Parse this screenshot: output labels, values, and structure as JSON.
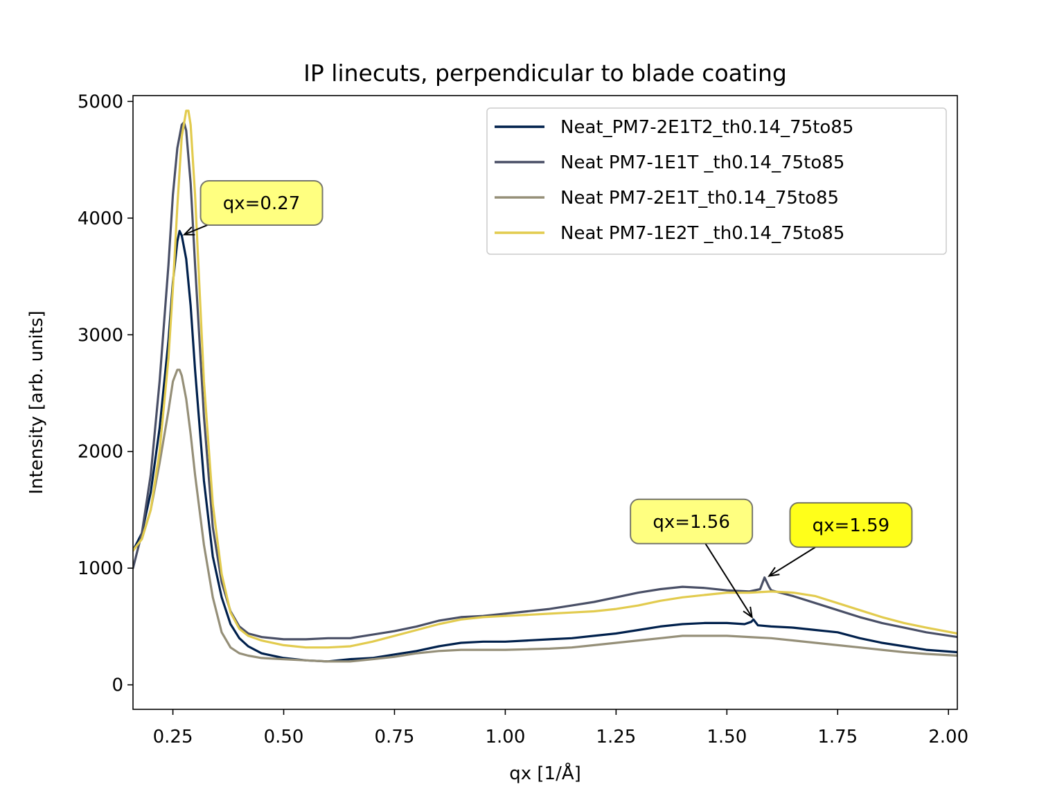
{
  "chart_data": {
    "type": "line",
    "title": "IP linecuts, perpendicular to blade coating",
    "xlabel": "qx [1/Å]",
    "ylabel": "Intensity [arb. units]",
    "xlim": [
      0.16,
      2.02
    ],
    "ylim": [
      -210,
      5050
    ],
    "xticks": [
      0.25,
      0.5,
      0.75,
      1.0,
      1.25,
      1.5,
      1.75,
      2.0
    ],
    "xtick_labels": [
      "0.25",
      "0.50",
      "0.75",
      "1.00",
      "1.25",
      "1.50",
      "1.75",
      "2.00"
    ],
    "yticks": [
      0,
      1000,
      2000,
      3000,
      4000,
      5000
    ],
    "ytick_labels": [
      "0",
      "1000",
      "2000",
      "3000",
      "4000",
      "5000"
    ],
    "grid": false,
    "legend_position": "top-right",
    "series": [
      {
        "name": "Neat_PM7-2E1T2_th0.14_75to85",
        "color": "#00204c",
        "x": [
          0.16,
          0.18,
          0.2,
          0.22,
          0.24,
          0.25,
          0.26,
          0.265,
          0.27,
          0.28,
          0.29,
          0.3,
          0.32,
          0.34,
          0.36,
          0.38,
          0.4,
          0.42,
          0.45,
          0.5,
          0.55,
          0.6,
          0.65,
          0.7,
          0.75,
          0.8,
          0.85,
          0.9,
          0.95,
          1.0,
          1.05,
          1.1,
          1.15,
          1.2,
          1.25,
          1.3,
          1.35,
          1.4,
          1.45,
          1.5,
          1.54,
          1.555,
          1.56,
          1.57,
          1.6,
          1.65,
          1.7,
          1.75,
          1.8,
          1.85,
          1.9,
          1.95,
          2.02
        ],
        "y": [
          1150,
          1300,
          1650,
          2200,
          2950,
          3450,
          3800,
          3890,
          3850,
          3650,
          3250,
          2700,
          1750,
          1100,
          750,
          520,
          400,
          330,
          270,
          230,
          210,
          200,
          220,
          230,
          260,
          290,
          330,
          360,
          370,
          370,
          380,
          390,
          400,
          420,
          440,
          470,
          500,
          520,
          530,
          530,
          520,
          540,
          560,
          510,
          500,
          490,
          470,
          450,
          400,
          360,
          330,
          300,
          280
        ]
      },
      {
        "name": "Neat PM7-1E1T _th0.14_75to85",
        "color": "#494f66",
        "x": [
          0.16,
          0.18,
          0.2,
          0.22,
          0.24,
          0.25,
          0.26,
          0.27,
          0.275,
          0.28,
          0.29,
          0.3,
          0.32,
          0.34,
          0.36,
          0.38,
          0.4,
          0.42,
          0.45,
          0.5,
          0.55,
          0.6,
          0.65,
          0.7,
          0.75,
          0.8,
          0.85,
          0.9,
          0.95,
          1.0,
          1.05,
          1.1,
          1.15,
          1.2,
          1.25,
          1.3,
          1.35,
          1.4,
          1.45,
          1.5,
          1.55,
          1.575,
          1.585,
          1.595,
          1.6,
          1.65,
          1.7,
          1.75,
          1.8,
          1.85,
          1.9,
          1.95,
          2.02
        ],
        "y": [
          1000,
          1300,
          1800,
          2600,
          3600,
          4200,
          4600,
          4800,
          4820,
          4750,
          4300,
          3600,
          2300,
          1350,
          880,
          630,
          500,
          440,
          410,
          390,
          390,
          400,
          400,
          430,
          460,
          500,
          550,
          580,
          590,
          610,
          630,
          650,
          680,
          710,
          750,
          790,
          820,
          840,
          830,
          810,
          800,
          820,
          920,
          840,
          810,
          760,
          700,
          640,
          580,
          530,
          490,
          450,
          410
        ]
      },
      {
        "name": "Neat PM7-2E1T_th0.14_75to85",
        "color": "#958f78",
        "x": [
          0.16,
          0.18,
          0.2,
          0.22,
          0.24,
          0.25,
          0.26,
          0.265,
          0.27,
          0.28,
          0.29,
          0.3,
          0.32,
          0.34,
          0.36,
          0.38,
          0.4,
          0.42,
          0.45,
          0.5,
          0.55,
          0.6,
          0.65,
          0.7,
          0.75,
          0.8,
          0.85,
          0.9,
          0.95,
          1.0,
          1.05,
          1.1,
          1.15,
          1.2,
          1.25,
          1.3,
          1.35,
          1.4,
          1.45,
          1.5,
          1.55,
          1.6,
          1.65,
          1.7,
          1.75,
          1.8,
          1.85,
          1.9,
          1.95,
          2.02
        ],
        "y": [
          1150,
          1250,
          1500,
          1900,
          2350,
          2600,
          2700,
          2700,
          2650,
          2450,
          2150,
          1800,
          1200,
          750,
          450,
          320,
          270,
          250,
          230,
          220,
          210,
          200,
          200,
          220,
          240,
          270,
          290,
          300,
          300,
          300,
          305,
          310,
          320,
          340,
          360,
          380,
          400,
          420,
          420,
          420,
          410,
          400,
          380,
          360,
          340,
          320,
          300,
          280,
          265,
          250
        ]
      },
      {
        "name": "Neat PM7-1E2T _th0.14_75to85",
        "color": "#e2cb4e",
        "x": [
          0.16,
          0.18,
          0.2,
          0.22,
          0.24,
          0.25,
          0.26,
          0.27,
          0.28,
          0.285,
          0.29,
          0.3,
          0.31,
          0.32,
          0.34,
          0.36,
          0.38,
          0.4,
          0.42,
          0.45,
          0.5,
          0.55,
          0.6,
          0.65,
          0.7,
          0.75,
          0.8,
          0.85,
          0.9,
          0.95,
          1.0,
          1.05,
          1.1,
          1.15,
          1.2,
          1.25,
          1.3,
          1.35,
          1.4,
          1.45,
          1.5,
          1.55,
          1.6,
          1.65,
          1.7,
          1.75,
          1.8,
          1.85,
          1.9,
          1.95,
          2.02
        ],
        "y": [
          1150,
          1250,
          1500,
          2000,
          2800,
          3400,
          4100,
          4700,
          4920,
          4920,
          4800,
          4200,
          3400,
          2600,
          1550,
          950,
          620,
          480,
          420,
          380,
          340,
          320,
          320,
          330,
          370,
          420,
          470,
          520,
          560,
          580,
          590,
          600,
          610,
          620,
          630,
          650,
          680,
          720,
          750,
          770,
          790,
          790,
          800,
          790,
          760,
          700,
          640,
          580,
          530,
          490,
          440
        ]
      }
    ],
    "annotations": [
      {
        "text": "qx=0.27",
        "x": 0.27,
        "y": 3850,
        "text_x": 0.45,
        "text_y": 4130,
        "box_color": "#ffff80"
      },
      {
        "text": "qx=1.56",
        "x": 1.56,
        "y": 560,
        "text_x": 1.42,
        "text_y": 1400,
        "box_color": "#ffff80"
      },
      {
        "text": "qx=1.59",
        "x": 1.59,
        "y": 920,
        "text_x": 1.78,
        "text_y": 1370,
        "box_color": "#ffff1a"
      }
    ]
  }
}
